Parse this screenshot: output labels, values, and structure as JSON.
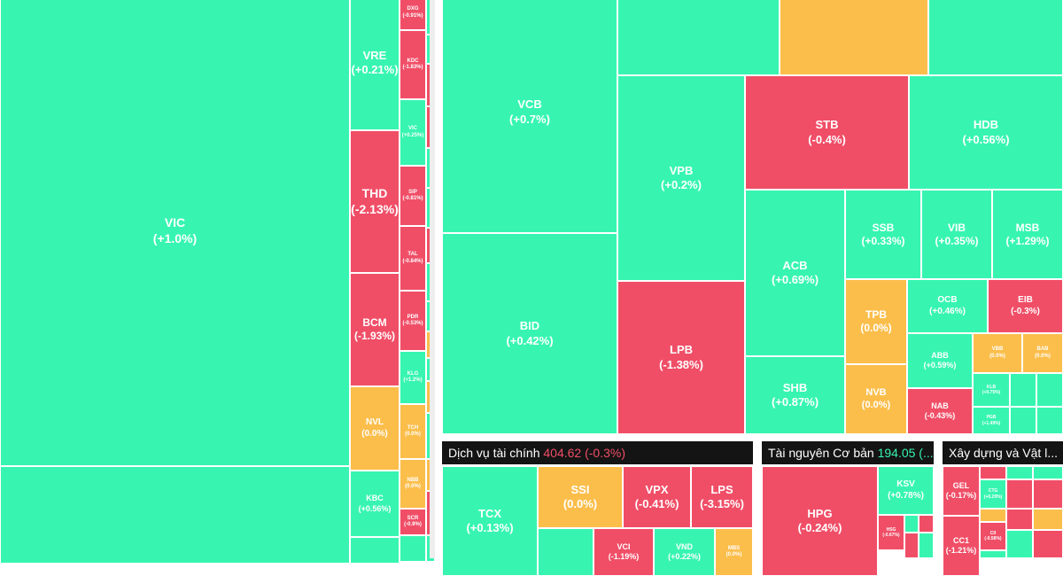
{
  "colors": {
    "up": "#37f5b0",
    "down": "#f04e67",
    "flat": "#fbbe4b",
    "header_bg": "#141414",
    "header_down_value": "#f04e67",
    "header_up_value": "#37f5b0"
  },
  "sections": [
    {
      "id": "bds",
      "title": "",
      "value": "",
      "change": ""
    },
    {
      "id": "nganhang",
      "title": "",
      "value": "",
      "change": ""
    },
    {
      "id": "dvtc",
      "title": "Dịch vụ tài chính",
      "value": "404.62 (-0.3%)",
      "change": "down"
    },
    {
      "id": "tncb",
      "title": "Tài nguyên Cơ bản",
      "value": "194.05 (...",
      "change": "up"
    },
    {
      "id": "xdvl",
      "title": "Xây dựng và Vật l...",
      "value": "",
      "change": ""
    }
  ],
  "chart_data": {
    "type": "treemap",
    "stocks": [
      {
        "ticker": "VIC",
        "change": "(+1.0%)",
        "status": "up"
      },
      {
        "ticker": "VRE",
        "change": "(+0.21%)",
        "status": "up"
      },
      {
        "ticker": "THD",
        "change": "(-2.13%)",
        "status": "down"
      },
      {
        "ticker": "BCM",
        "change": "(-1.93%)",
        "status": "down"
      },
      {
        "ticker": "NVL",
        "change": "(0.0%)",
        "status": "flat"
      },
      {
        "ticker": "KBC",
        "change": "(+0.56%)",
        "status": "up"
      },
      {
        "ticker": "DXG",
        "change": "(-0.91%)",
        "status": "down"
      },
      {
        "ticker": "KDC",
        "change": "(-1.83%)",
        "status": "down"
      },
      {
        "ticker": "VIC",
        "change": "(+0.25%)",
        "status": "up"
      },
      {
        "ticker": "SIP",
        "change": "(-0.81%)",
        "status": "down"
      },
      {
        "ticker": "TAL",
        "change": "(-0.84%)",
        "status": "down"
      },
      {
        "ticker": "PDR",
        "change": "(-0.53%)",
        "status": "down"
      },
      {
        "ticker": "KLG",
        "change": "(+1.2%)",
        "status": "up"
      },
      {
        "ticker": "TCH",
        "change": "(0.0%)",
        "status": "flat"
      },
      {
        "ticker": "NBB",
        "change": "(0.0%)",
        "status": "flat"
      },
      {
        "ticker": "SCR",
        "change": "(-0.9%)",
        "status": "down"
      },
      {
        "ticker": "VCB",
        "change": "(+0.7%)",
        "status": "up"
      },
      {
        "ticker": "BID",
        "change": "(+0.42%)",
        "status": "up"
      },
      {
        "ticker": "VPB",
        "change": "(+0.2%)",
        "status": "up"
      },
      {
        "ticker": "LPB",
        "change": "(-1.38%)",
        "status": "down"
      },
      {
        "ticker": "STB",
        "change": "(-0.4%)",
        "status": "down"
      },
      {
        "ticker": "HDB",
        "change": "(+0.56%)",
        "status": "up"
      },
      {
        "ticker": "ACB",
        "change": "(+0.69%)",
        "status": "up"
      },
      {
        "ticker": "SSB",
        "change": "(+0.33%)",
        "status": "up"
      },
      {
        "ticker": "VIB",
        "change": "(+0.35%)",
        "status": "up"
      },
      {
        "ticker": "MSB",
        "change": "(+1.29%)",
        "status": "up"
      },
      {
        "ticker": "TPB",
        "change": "(0.0%)",
        "status": "flat"
      },
      {
        "ticker": "OCB",
        "change": "(+0.46%)",
        "status": "up"
      },
      {
        "ticker": "EIB",
        "change": "(-0.3%)",
        "status": "down"
      },
      {
        "ticker": "SHB",
        "change": "(+0.87%)",
        "status": "up"
      },
      {
        "ticker": "ABB",
        "change": "(+0.59%)",
        "status": "up"
      },
      {
        "ticker": "VBB",
        "change": "(0.0%)",
        "status": "flat"
      },
      {
        "ticker": "BAB",
        "change": "(0.0%)",
        "status": "flat"
      },
      {
        "ticker": "NVB",
        "change": "(0.0%)",
        "status": "flat"
      },
      {
        "ticker": "NAB",
        "change": "(-0.43%)",
        "status": "down"
      },
      {
        "ticker": "KLB",
        "change": "(+0.75%)",
        "status": "up"
      },
      {
        "ticker": "PGB",
        "change": "(+1.49%)",
        "status": "up"
      },
      {
        "ticker": "TCX",
        "change": "(+0.13%)",
        "status": "up"
      },
      {
        "ticker": "SSI",
        "change": "(0.0%)",
        "status": "flat"
      },
      {
        "ticker": "VPX",
        "change": "(-0.41%)",
        "status": "down"
      },
      {
        "ticker": "LPS",
        "change": "(-3.15%)",
        "status": "down"
      },
      {
        "ticker": "VCI",
        "change": "(-1.19%)",
        "status": "down"
      },
      {
        "ticker": "VND",
        "change": "(+0.22%)",
        "status": "up"
      },
      {
        "ticker": "MBS",
        "change": "(0.0%)",
        "status": "flat"
      },
      {
        "ticker": "HPG",
        "change": "(-0.24%)",
        "status": "down"
      },
      {
        "ticker": "KSV",
        "change": "(+0.78%)",
        "status": "up"
      },
      {
        "ticker": "HSG",
        "change": "(-0.67%)",
        "status": "down"
      },
      {
        "ticker": "GEL",
        "change": "(-0.17%)",
        "status": "down"
      },
      {
        "ticker": "CC1",
        "change": "(-1.21%)",
        "status": "down"
      },
      {
        "ticker": "CTG",
        "change": "(+0.29%)",
        "status": "up"
      },
      {
        "ticker": "CII",
        "change": "(-0.58%)",
        "status": "down"
      }
    ]
  }
}
